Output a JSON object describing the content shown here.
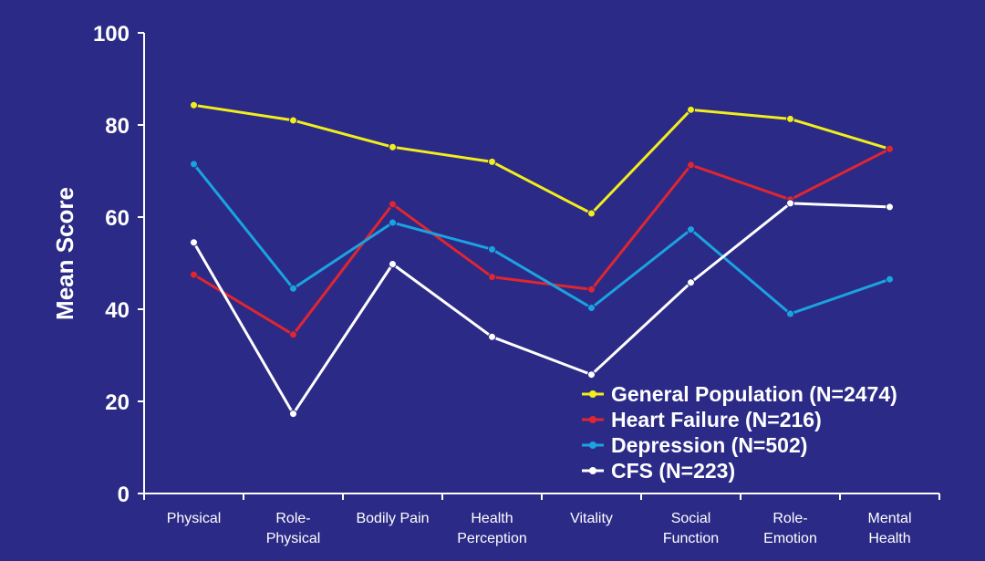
{
  "chart_data": {
    "type": "line",
    "title": "",
    "xlabel": "",
    "ylabel": "Mean Score",
    "ylim": [
      0,
      100
    ],
    "yticks": [
      0,
      20,
      40,
      60,
      80,
      100
    ],
    "grid": false,
    "legend_position": "bottom-right",
    "background_color": "#2b2a87",
    "categories": [
      [
        "Physical"
      ],
      [
        "Role-",
        "Physical"
      ],
      [
        "Bodily Pain"
      ],
      [
        "Health",
        "Perception"
      ],
      [
        "Vitality"
      ],
      [
        "Social",
        "Function"
      ],
      [
        "Role-",
        "Emotion"
      ],
      [
        "Mental",
        "Health"
      ]
    ],
    "series": [
      {
        "name": "General Population (N=2474)",
        "color": "#f2ee1c",
        "values": [
          84.3,
          81.0,
          75.2,
          72.0,
          60.8,
          83.3,
          81.3,
          74.8
        ]
      },
      {
        "name": "Heart Failure (N=216)",
        "color": "#e0262f",
        "values": [
          47.5,
          34.5,
          62.8,
          47.0,
          44.3,
          71.3,
          63.8,
          74.8
        ]
      },
      {
        "name": "Depression (N=502)",
        "color": "#1ba3e0",
        "values": [
          71.5,
          44.5,
          58.8,
          53.0,
          40.3,
          57.3,
          39.0,
          46.5
        ]
      },
      {
        "name": "CFS (N=223)",
        "color": "#ffffff",
        "values": [
          54.5,
          17.3,
          49.8,
          34.0,
          25.8,
          45.8,
          63.0,
          62.2
        ]
      }
    ]
  }
}
